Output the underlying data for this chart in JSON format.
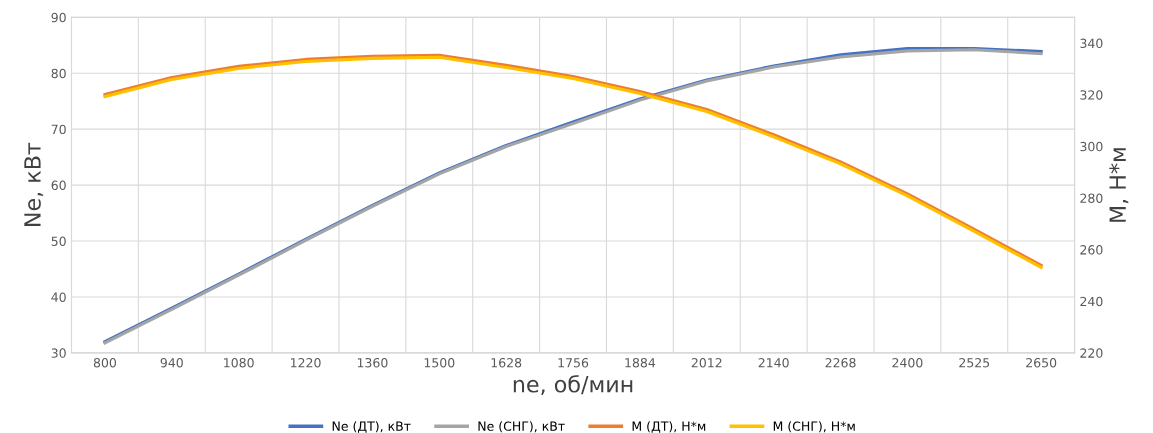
{
  "chart_data": {
    "type": "line",
    "xlabel": "ne, об/мин",
    "ylabel": "Ne, кВт",
    "y2label": "M, Н*м",
    "categories": [
      "800",
      "940",
      "1080",
      "1220",
      "1360",
      "1500",
      "1628",
      "1756",
      "1884",
      "2012",
      "2140",
      "2268",
      "2400",
      "2525",
      "2650"
    ],
    "series": [
      {
        "name": "Ne (ДТ), кВт",
        "color": "#4472c4",
        "values": [
          32.0,
          38.0,
          44.1,
          50.3,
          56.4,
          62.2,
          67.1,
          71.3,
          75.4,
          78.8,
          81.3,
          83.3,
          84.4,
          84.4,
          83.9
        ]
      },
      {
        "name": "Ne (СНГ), кВт",
        "color": "#a5a5a5",
        "values": [
          31.8,
          37.8,
          43.9,
          50.1,
          56.2,
          62.0,
          66.9,
          71.0,
          75.2,
          78.6,
          81.1,
          82.9,
          84.0,
          84.2,
          83.5
        ]
      },
      {
        "name": "M (ДТ), Н*м",
        "color": "#ed7d31",
        "axis": "y2",
        "values": [
          320.1,
          326.7,
          331.0,
          333.7,
          334.9,
          335.3,
          331.4,
          327.1,
          321.3,
          314.3,
          304.5,
          294.0,
          281.6,
          267.9,
          253.9
        ]
      },
      {
        "name": "M (СНГ), Н*м",
        "color": "#ffc000",
        "axis": "y2",
        "values": [
          319.3,
          325.9,
          330.2,
          332.9,
          334.1,
          334.5,
          330.6,
          326.3,
          320.5,
          313.5,
          303.7,
          293.2,
          280.8,
          267.1,
          253.1
        ]
      }
    ],
    "ylim": [
      30,
      90
    ],
    "yticks": [
      30,
      40,
      50,
      60,
      70,
      80,
      90
    ],
    "y2lim": [
      220,
      350
    ],
    "y2ticks": [
      220,
      240,
      260,
      280,
      300,
      320,
      340
    ],
    "grid": true,
    "legend": "bottom",
    "marker": "none",
    "line_style": "solid"
  }
}
